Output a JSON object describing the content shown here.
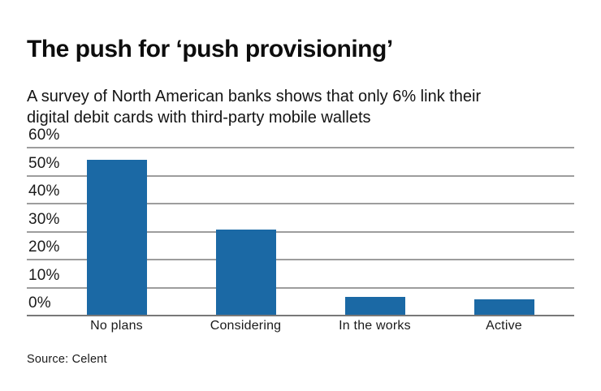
{
  "header": {
    "title": "The push for ‘push provisioning’",
    "subtitle_line1": "A survey of North American banks shows that only 6% link their",
    "subtitle_line2": "digital debit cards with third-party mobile wallets"
  },
  "chart_data": {
    "type": "bar",
    "title": "The push for ‘push provisioning’",
    "subtitle": "A survey of North American banks shows that only 6% link their digital debit cards with third-party mobile wallets",
    "categories": [
      "No plans",
      "Considering",
      "In the works",
      "Active"
    ],
    "values": [
      56,
      31,
      7,
      6
    ],
    "unit": "%",
    "y_ticks": [
      60,
      50,
      40,
      30,
      20,
      10,
      0
    ],
    "ylim": [
      0,
      60
    ],
    "xlabel": "",
    "ylabel": "",
    "grid": true,
    "legend": false,
    "bar_color": "#1b69a5",
    "gridline_color": "#9d9d9d",
    "baseline_color": "#787878"
  },
  "footer": {
    "source": "Source: Celent"
  }
}
